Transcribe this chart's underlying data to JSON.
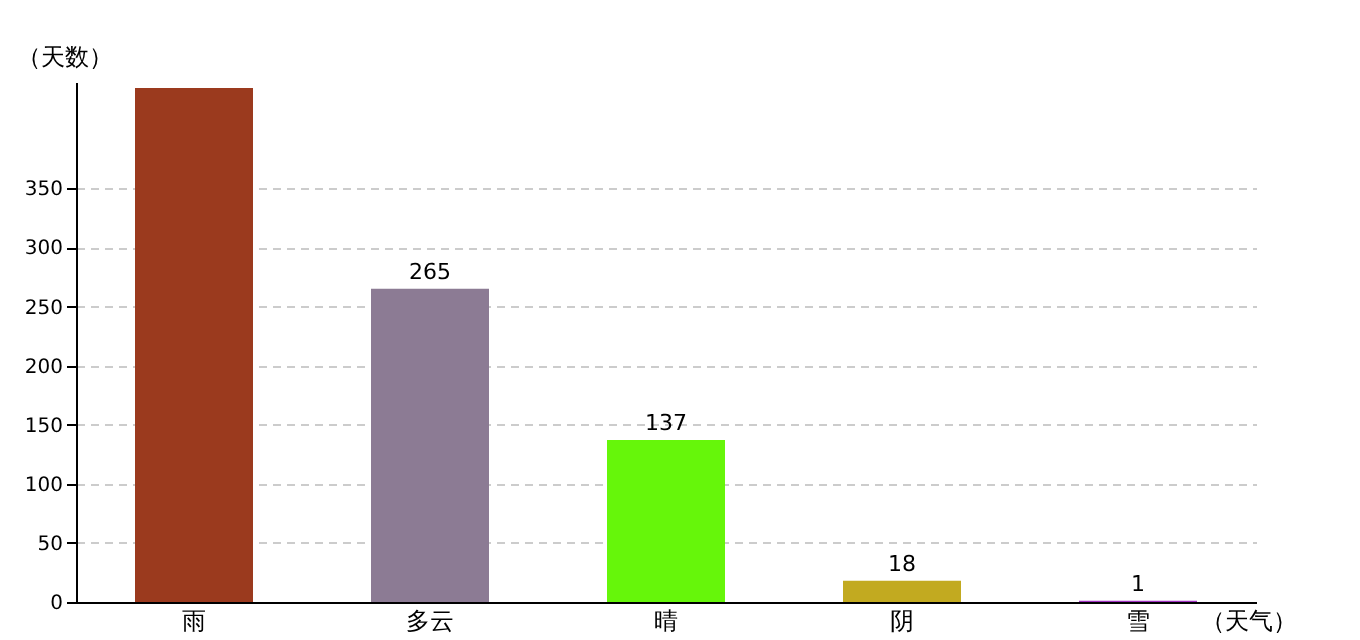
{
  "chart_data": {
    "type": "bar",
    "xlabel": "（天气）",
    "ylabel": "（天数）",
    "categories": [
      "雨",
      "多云",
      "晴",
      "阴",
      "雪"
    ],
    "values": [
      435,
      265,
      137,
      18,
      1
    ],
    "value_labels": [
      null,
      "265",
      "137",
      "18",
      "1"
    ],
    "colors": [
      "#9b3a1e",
      "#8c7b94",
      "#66f60a",
      "#c2aa20",
      "#a030c0"
    ],
    "ylim": [
      0,
      440
    ],
    "yticks": [
      0,
      50,
      100,
      150,
      200,
      250,
      300,
      350
    ],
    "grid": "y"
  }
}
